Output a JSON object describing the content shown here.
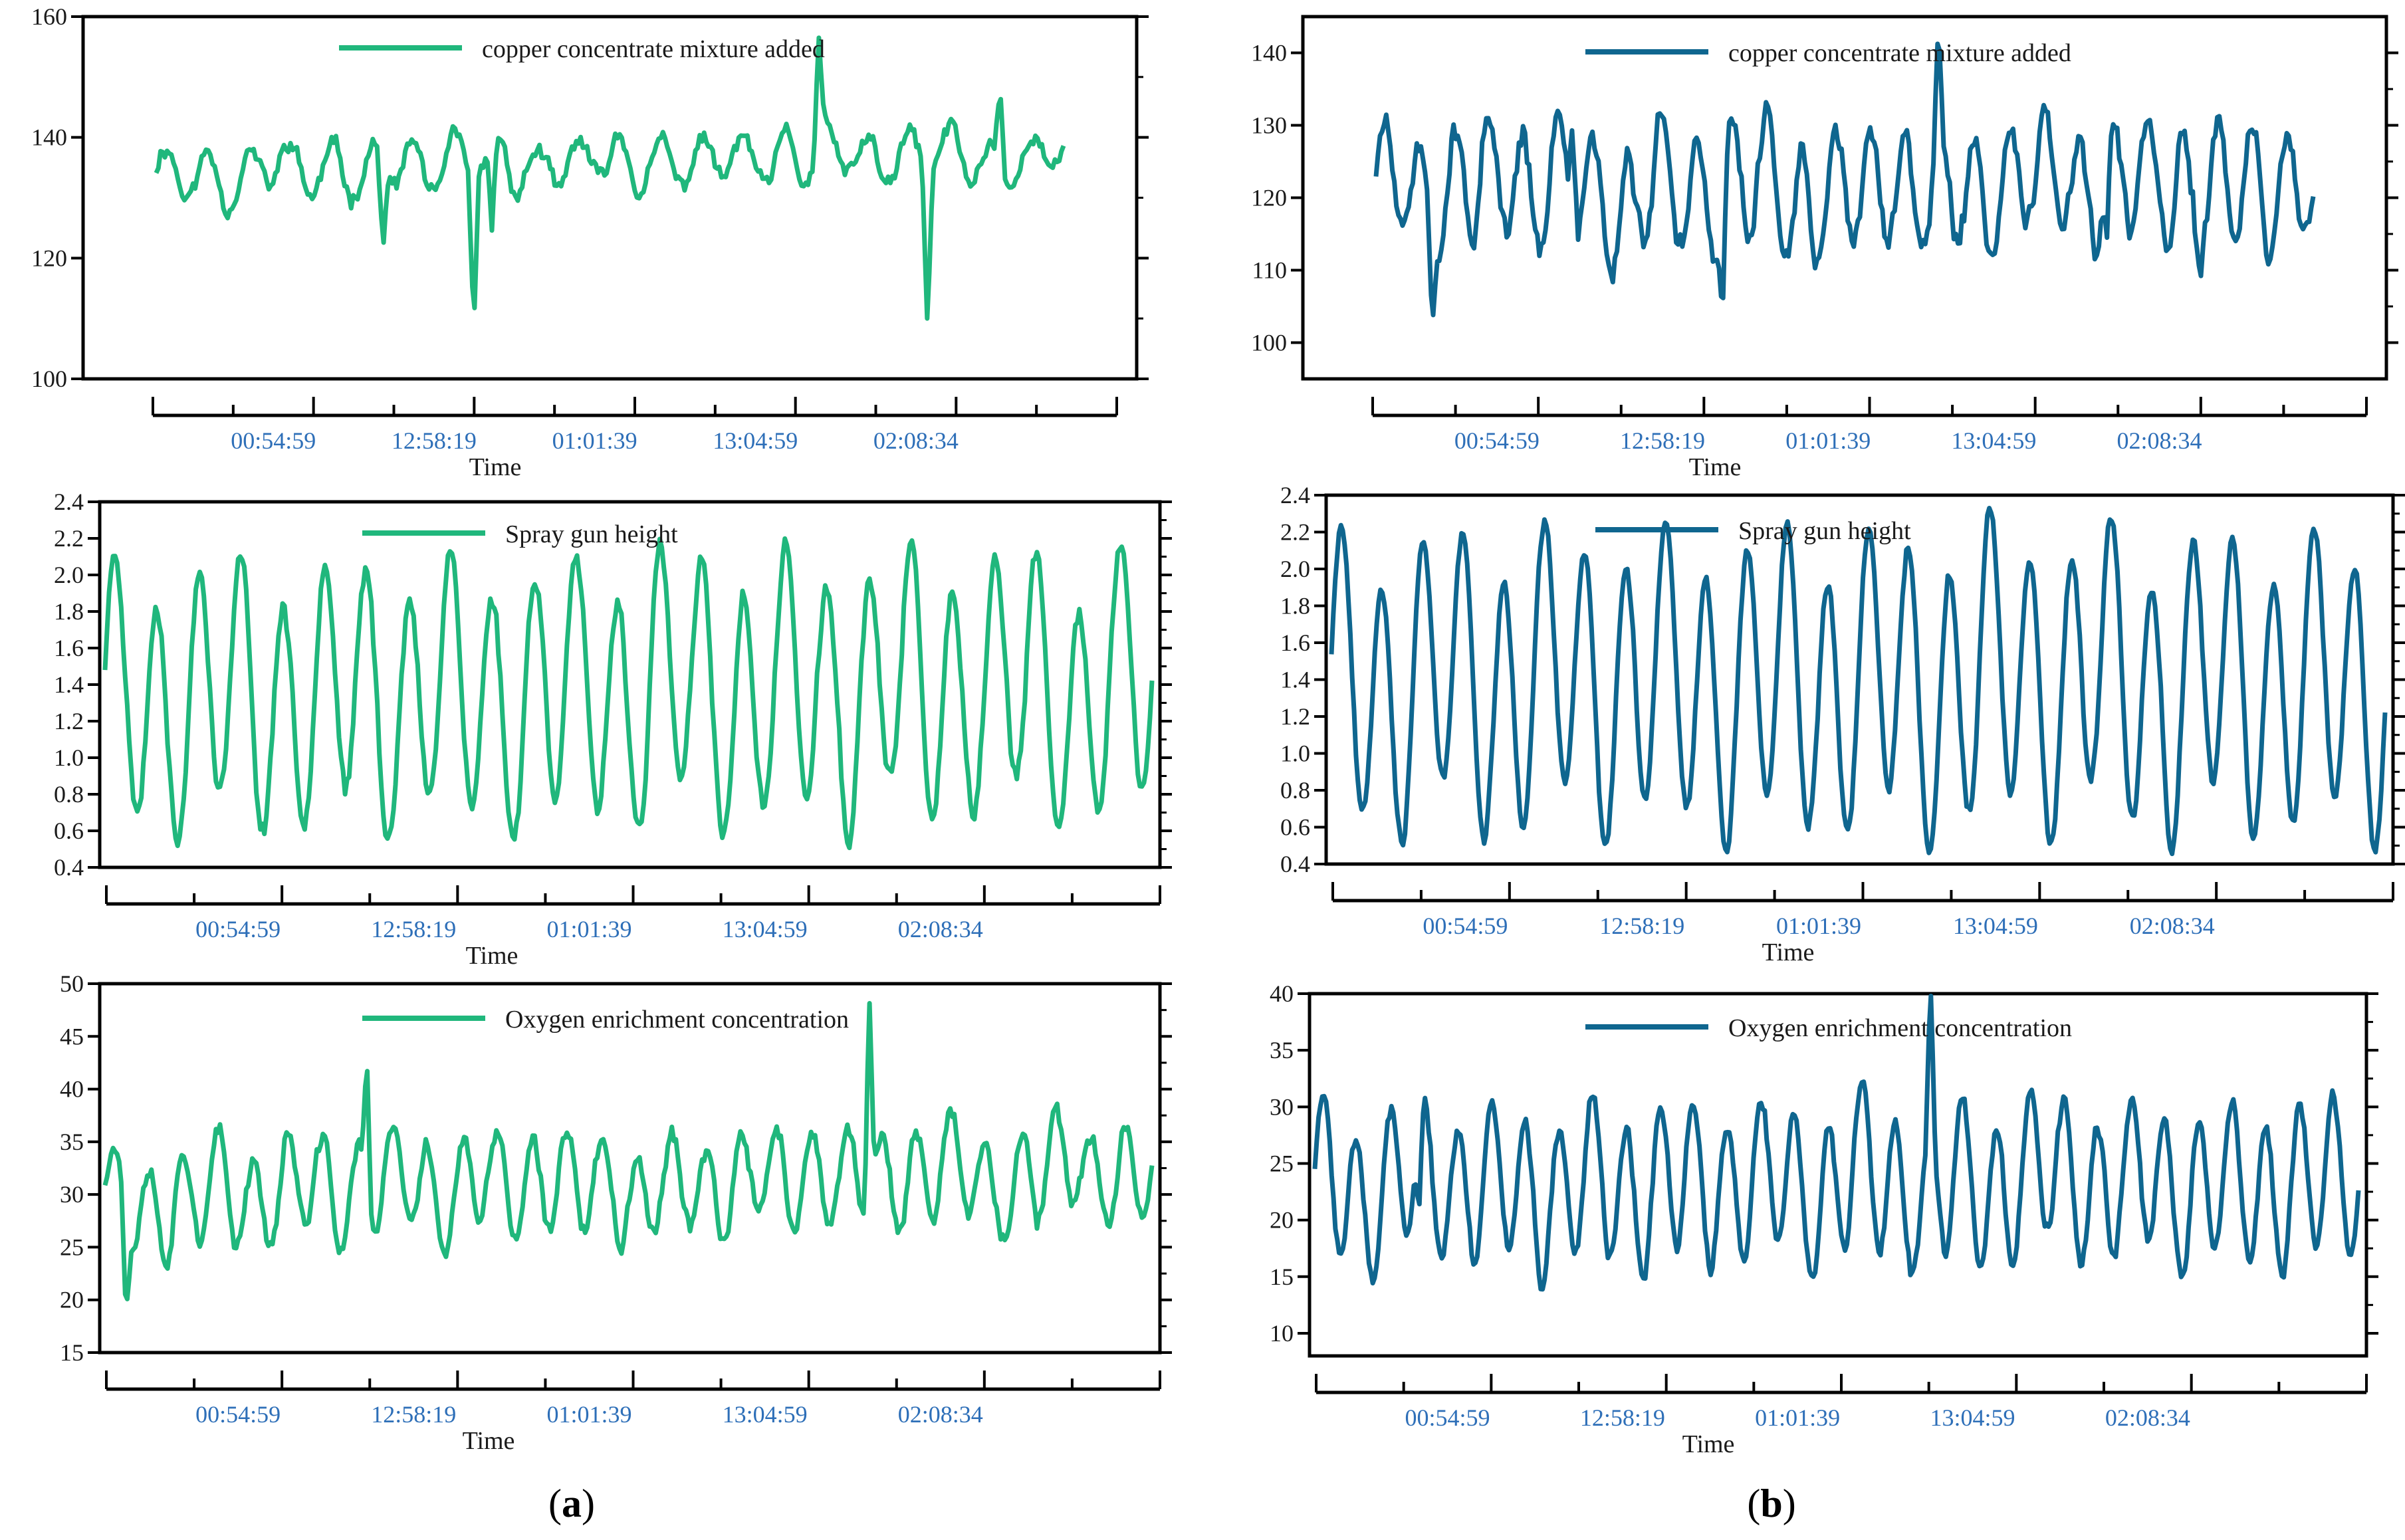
{
  "colors": {
    "a": "#20b77c",
    "b": "#0f668f"
  },
  "panel_labels": {
    "a": "a",
    "b": "b"
  },
  "chart_data": [
    {
      "id": "a-copper",
      "panel": "a",
      "type": "line",
      "legend": "copper concentrate mixture added",
      "xlabel": "Time",
      "ylim": [
        100,
        160
      ],
      "yticks": [
        "100",
        "120",
        "140",
        "160"
      ],
      "ytick_values": [
        100,
        120,
        140,
        160
      ],
      "xticks": [
        "00:54:59",
        "12:58:19",
        "01:01:39",
        "13:04:59",
        "02:08:34"
      ],
      "series": [
        {
          "name": "copper concentrate mixture added",
          "n": 420,
          "base": 134,
          "trend": 3,
          "noise": 2.2,
          "cycles": 22,
          "amp": 4,
          "seed": 11,
          "spikes": [
            [
              0.25,
              -14
            ],
            [
              0.35,
              -26
            ],
            [
              0.37,
              -16
            ],
            [
              0.73,
              17
            ],
            [
              0.85,
              -26
            ],
            [
              0.93,
              12
            ]
          ]
        }
      ]
    },
    {
      "id": "a-spray",
      "panel": "a",
      "type": "line",
      "legend": "Spray gun height",
      "xlabel": "Time",
      "ylim": [
        0.4,
        2.4
      ],
      "yticks": [
        "0.4",
        "0.6",
        "0.8",
        "1.0",
        "1.2",
        "1.4",
        "1.6",
        "1.8",
        "2.0",
        "2.2",
        "2.4"
      ],
      "ytick_values": [
        0.4,
        0.6,
        0.8,
        1.0,
        1.2,
        1.4,
        1.6,
        1.8,
        2.0,
        2.2,
        2.4
      ],
      "xticks": [
        "00:54:59",
        "12:58:19",
        "01:01:39",
        "13:04:59",
        "02:08:34"
      ],
      "series": [
        {
          "name": "Spray gun height",
          "n": 520,
          "base": 1.35,
          "trend": 0,
          "noise": 0.08,
          "cycles": 25,
          "amp": 0.65,
          "seed": 23,
          "spikes": []
        }
      ]
    },
    {
      "id": "a-oxygen",
      "panel": "a",
      "type": "line",
      "legend": "Oxygen enrichment concentration",
      "xlabel": "Time",
      "ylim": [
        15,
        50
      ],
      "yticks": [
        "15",
        "20",
        "25",
        "30",
        "35",
        "40",
        "45",
        "50"
      ],
      "ytick_values": [
        15,
        20,
        25,
        30,
        35,
        40,
        45,
        50
      ],
      "xticks": [
        "00:54:59",
        "12:58:19",
        "01:01:39",
        "13:04:59",
        "02:08:34"
      ],
      "series": [
        {
          "name": "Oxygen enrichment concentration",
          "n": 520,
          "base": 30,
          "trend": 2,
          "noise": 1.3,
          "cycles": 30,
          "amp": 4.5,
          "seed": 37,
          "spikes": [
            [
              0.02,
              -8
            ],
            [
              0.25,
              12
            ],
            [
              0.73,
              19
            ]
          ]
        }
      ]
    },
    {
      "id": "b-copper",
      "panel": "b",
      "type": "line",
      "legend": "copper concentrate mixture added",
      "xlabel": "Time",
      "ylim": [
        95,
        145
      ],
      "yticks": [
        "100",
        "110",
        "120",
        "130",
        "140"
      ],
      "ytick_values": [
        100,
        110,
        120,
        130,
        140
      ],
      "xticks": [
        "00:54:59",
        "12:58:19",
        "01:01:39",
        "13:04:59",
        "02:08:34"
      ],
      "series": [
        {
          "name": "copper concentrate mixture added",
          "n": 460,
          "base": 121,
          "trend": 0,
          "noise": 3,
          "cycles": 27,
          "amp": 8,
          "seed": 51,
          "spikes": [
            [
              0.06,
              -12
            ],
            [
              0.21,
              14
            ],
            [
              0.37,
              -15
            ],
            [
              0.6,
              14
            ],
            [
              0.78,
              -11
            ]
          ]
        }
      ]
    },
    {
      "id": "b-spray",
      "panel": "b",
      "type": "line",
      "legend": "Spray gun height",
      "xlabel": "Time",
      "ylim": [
        0.4,
        2.4
      ],
      "yticks": [
        "0.4",
        "0.6",
        "0.8",
        "1.0",
        "1.2",
        "1.4",
        "1.6",
        "1.8",
        "2.0",
        "2.2",
        "2.4"
      ],
      "ytick_values": [
        0.4,
        0.6,
        0.8,
        1.0,
        1.2,
        1.4,
        1.6,
        1.8,
        2.0,
        2.2,
        2.4
      ],
      "xticks": [
        "00:54:59",
        "12:58:19",
        "01:01:39",
        "13:04:59",
        "02:08:34"
      ],
      "series": [
        {
          "name": "Spray gun height",
          "n": 560,
          "base": 1.38,
          "trend": 0,
          "noise": 0.05,
          "cycles": 26,
          "amp": 0.72,
          "seed": 67,
          "spikes": []
        }
      ]
    },
    {
      "id": "b-oxygen",
      "panel": "b",
      "type": "line",
      "legend": "Oxygen enrichment concentration",
      "xlabel": "Time",
      "ylim": [
        8,
        40
      ],
      "yticks": [
        "10",
        "15",
        "20",
        "25",
        "30",
        "35",
        "40"
      ],
      "ytick_values": [
        10,
        15,
        20,
        25,
        30,
        35,
        40
      ],
      "xticks": [
        "00:54:59",
        "12:58:19",
        "01:01:39",
        "13:04:59",
        "02:08:34"
      ],
      "series": [
        {
          "name": "Oxygen enrichment concentration",
          "n": 560,
          "base": 23,
          "trend": 0,
          "noise": 1.0,
          "cycles": 31,
          "amp": 6.5,
          "seed": 83,
          "spikes": [
            [
              0.1,
              -8
            ],
            [
              0.59,
              13
            ]
          ]
        }
      ]
    }
  ]
}
